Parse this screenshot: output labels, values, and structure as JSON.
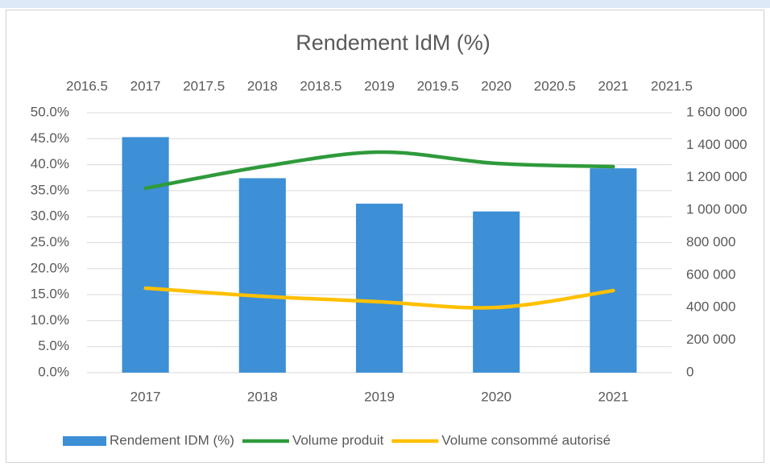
{
  "chart_data": {
    "type": "bar",
    "title": "Rendement IdM (%)",
    "categories": [
      "2017",
      "2018",
      "2019",
      "2020",
      "2021"
    ],
    "x": [
      2017,
      2018,
      2019,
      2020,
      2021
    ],
    "xlim": [
      2016.5,
      2021.5
    ],
    "xticks": [
      2016.5,
      2017,
      2017.5,
      2018,
      2018.5,
      2019,
      2019.5,
      2020,
      2020.5,
      2021,
      2021.5
    ],
    "ylim": [
      0,
      50
    ],
    "yticks": [
      {
        "value": 0,
        "label": "0.0%"
      },
      {
        "value": 5,
        "label": "5.0%"
      },
      {
        "value": 10,
        "label": "10.0%"
      },
      {
        "value": 15,
        "label": "15.0%"
      },
      {
        "value": 20,
        "label": "20.0%"
      },
      {
        "value": 25,
        "label": "25.0%"
      },
      {
        "value": 30,
        "label": "30.0%"
      },
      {
        "value": 35,
        "label": "35.0%"
      },
      {
        "value": 40,
        "label": "40.0%"
      },
      {
        "value": 45,
        "label": "45.0%"
      },
      {
        "value": 50,
        "label": "50.0%"
      }
    ],
    "y2lim": [
      0,
      1600000
    ],
    "y2ticks": [
      0,
      {
        "value": 200000,
        "label": "200 000"
      },
      {
        "value": 400000,
        "label": "400 000"
      },
      {
        "value": 600000,
        "label": "600 000"
      },
      {
        "value": 800000,
        "label": "800 000"
      },
      {
        "value": 1000000,
        "label": "1 000 000"
      },
      {
        "value": 1200000,
        "label": "1 200 000"
      },
      {
        "value": 1400000,
        "label": "1 400 000"
      },
      {
        "value": 1600000,
        "label": "1 600 000"
      }
    ],
    "grid": true,
    "legend": "bottom",
    "series": [
      {
        "name": "Rendement IDM (%)",
        "type": "bar",
        "color": "#3d8fd6",
        "values": [
          45.3,
          37.4,
          32.5,
          31.0,
          39.3
        ]
      },
      {
        "name": "Volume produit",
        "type": "line",
        "axis": "y2",
        "color": "#2f9a3b",
        "values": [
          1135000,
          1268000,
          1357000,
          1288000,
          1268000
        ]
      },
      {
        "name": "Volume consommé autorisé",
        "type": "line",
        "axis": "y2",
        "color": "#ffc000",
        "values": [
          520000,
          470000,
          436000,
          401000,
          505000
        ]
      }
    ]
  }
}
